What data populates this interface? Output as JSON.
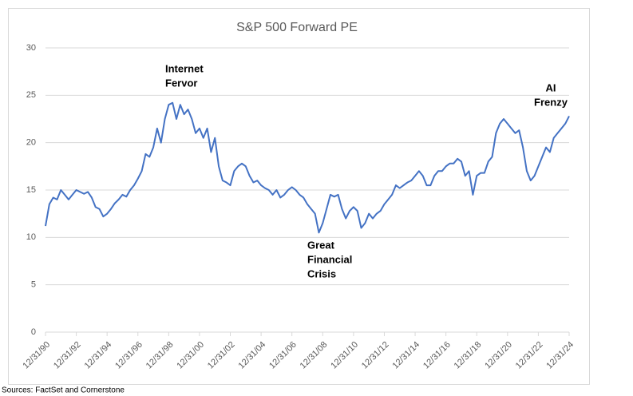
{
  "chart_data": {
    "type": "line",
    "title": "S&P 500 Forward PE",
    "x": [
      1991,
      1991.25,
      1991.5,
      1991.75,
      1992,
      1992.25,
      1992.5,
      1992.75,
      1993,
      1993.25,
      1993.5,
      1993.75,
      1994,
      1994.25,
      1994.5,
      1994.75,
      1995,
      1995.25,
      1995.5,
      1995.75,
      1996,
      1996.25,
      1996.5,
      1996.75,
      1997,
      1997.25,
      1997.5,
      1997.75,
      1998,
      1998.25,
      1998.5,
      1998.75,
      1999,
      1999.25,
      1999.5,
      1999.75,
      2000,
      2000.25,
      2000.5,
      2000.75,
      2001,
      2001.25,
      2001.5,
      2001.75,
      2002,
      2002.25,
      2002.5,
      2002.75,
      2003,
      2003.25,
      2003.5,
      2003.75,
      2004,
      2004.25,
      2004.5,
      2004.75,
      2005,
      2005.25,
      2005.5,
      2005.75,
      2006,
      2006.25,
      2006.5,
      2006.75,
      2007,
      2007.25,
      2007.5,
      2007.75,
      2008,
      2008.25,
      2008.5,
      2008.75,
      2009,
      2009.25,
      2009.5,
      2009.75,
      2010,
      2010.25,
      2010.5,
      2010.75,
      2011,
      2011.25,
      2011.5,
      2011.75,
      2012,
      2012.25,
      2012.5,
      2012.75,
      2013,
      2013.25,
      2013.5,
      2013.75,
      2014,
      2014.25,
      2014.5,
      2014.75,
      2015,
      2015.25,
      2015.5,
      2015.75,
      2016,
      2016.25,
      2016.5,
      2016.75,
      2017,
      2017.25,
      2017.5,
      2017.75,
      2018,
      2018.25,
      2018.5,
      2018.75,
      2019,
      2019.25,
      2019.5,
      2019.75,
      2020,
      2020.25,
      2020.5,
      2020.75,
      2021,
      2021.25,
      2021.5,
      2021.75,
      2022,
      2022.25,
      2022.5,
      2022.75,
      2023,
      2023.25,
      2023.5,
      2023.75,
      2024,
      2024.25,
      2024.5,
      2024.75,
      2025
    ],
    "series": [
      {
        "color": "#4472c4",
        "values": [
          11.2,
          13.5,
          14.2,
          14.0,
          15.0,
          14.5,
          14.0,
          14.5,
          15.0,
          14.8,
          14.6,
          14.8,
          14.2,
          13.2,
          13.0,
          12.2,
          12.5,
          13.0,
          13.6,
          14.0,
          14.5,
          14.3,
          15.0,
          15.5,
          16.2,
          17.0,
          18.8,
          18.5,
          19.5,
          21.5,
          20.0,
          22.5,
          24.0,
          24.2,
          22.5,
          24.0,
          23.0,
          23.5,
          22.5,
          21.0,
          21.5,
          20.5,
          21.5,
          19.0,
          20.5,
          17.5,
          16.0,
          15.8,
          15.5,
          17.0,
          17.5,
          17.8,
          17.5,
          16.5,
          15.8,
          16.0,
          15.5,
          15.2,
          15.0,
          14.5,
          15.0,
          14.2,
          14.5,
          15.0,
          15.3,
          15.0,
          14.5,
          14.2,
          13.5,
          13.0,
          12.5,
          10.5,
          11.5,
          13.0,
          14.5,
          14.3,
          14.5,
          13.0,
          12.0,
          12.8,
          13.2,
          12.8,
          11.0,
          11.5,
          12.5,
          12.0,
          12.5,
          12.8,
          13.5,
          14.0,
          14.5,
          15.5,
          15.2,
          15.5,
          15.8,
          16.0,
          16.5,
          17.0,
          16.5,
          15.5,
          15.5,
          16.5,
          17.0,
          17.0,
          17.5,
          17.8,
          17.8,
          18.3,
          18.0,
          16.5,
          17.0,
          14.5,
          16.5,
          16.8,
          16.8,
          18.0,
          18.5,
          21.0,
          22.0,
          22.5,
          22.0,
          21.5,
          21.0,
          21.3,
          19.5,
          17.0,
          16.0,
          16.5,
          17.5,
          18.5,
          19.5,
          19.0,
          20.5,
          21.0,
          21.5,
          22.0,
          22.8
        ]
      }
    ],
    "xlim": [
      1991,
      2025
    ],
    "xticks": [
      {
        "value": 1991,
        "label": "12/31/90"
      },
      {
        "value": 1993,
        "label": "12/31/92"
      },
      {
        "value": 1995,
        "label": "12/31/94"
      },
      {
        "value": 1997,
        "label": "12/31/96"
      },
      {
        "value": 1999,
        "label": "12/31/98"
      },
      {
        "value": 2001,
        "label": "12/31/00"
      },
      {
        "value": 2003,
        "label": "12/31/02"
      },
      {
        "value": 2005,
        "label": "12/31/04"
      },
      {
        "value": 2007,
        "label": "12/31/06"
      },
      {
        "value": 2009,
        "label": "12/31/08"
      },
      {
        "value": 2011,
        "label": "12/31/10"
      },
      {
        "value": 2013,
        "label": "12/31/12"
      },
      {
        "value": 2015,
        "label": "12/31/14"
      },
      {
        "value": 2017,
        "label": "12/31/16"
      },
      {
        "value": 2019,
        "label": "12/31/18"
      },
      {
        "value": 2021,
        "label": "12/31/20"
      },
      {
        "value": 2023,
        "label": "12/31/22"
      },
      {
        "value": 2025,
        "label": "12/31/24"
      }
    ],
    "ylim": [
      0,
      30
    ],
    "yticks": [
      0,
      5,
      10,
      15,
      20,
      25,
      30
    ],
    "grid": true,
    "annotations": [
      {
        "lines": [
          "Internet",
          "Fervor"
        ]
      },
      {
        "lines": [
          "Great",
          "Financial",
          "Crisis"
        ]
      },
      {
        "lines": [
          "AI",
          "Frenzy"
        ]
      }
    ],
    "source": "Sources:  FactSet and Cornerstone"
  }
}
